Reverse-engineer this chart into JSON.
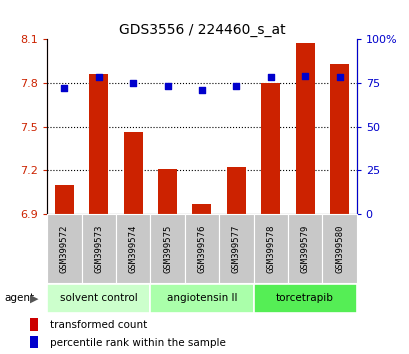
{
  "title": "GDS3556 / 224460_s_at",
  "samples": [
    "GSM399572",
    "GSM399573",
    "GSM399574",
    "GSM399575",
    "GSM399576",
    "GSM399577",
    "GSM399578",
    "GSM399579",
    "GSM399580"
  ],
  "bar_values": [
    7.1,
    7.86,
    7.46,
    7.21,
    6.97,
    7.22,
    7.8,
    8.07,
    7.93
  ],
  "percentile_values": [
    72,
    78,
    75,
    73,
    71,
    73,
    78,
    79,
    78
  ],
  "bar_bottom": 6.9,
  "ylim_left": [
    6.9,
    8.1
  ],
  "ylim_right": [
    0,
    100
  ],
  "yticks_left": [
    6.9,
    7.2,
    7.5,
    7.8,
    8.1
  ],
  "yticks_right": [
    0,
    25,
    50,
    75,
    100
  ],
  "ytick_labels_left": [
    "6.9",
    "7.2",
    "7.5",
    "7.8",
    "8.1"
  ],
  "ytick_labels_right": [
    "0",
    "25",
    "50",
    "75",
    "100%"
  ],
  "bar_color": "#cc2200",
  "dot_color": "#0000cc",
  "groups": [
    {
      "label": "solvent control",
      "start": 0,
      "end": 3,
      "color": "#ccffcc"
    },
    {
      "label": "angiotensin II",
      "start": 3,
      "end": 6,
      "color": "#aaffaa"
    },
    {
      "label": "torcetrapib",
      "start": 6,
      "end": 9,
      "color": "#55ee55"
    }
  ],
  "agent_label": "agent",
  "legend_bar_label": "transformed count",
  "legend_dot_label": "percentile rank within the sample",
  "bar_color_legend": "#cc0000",
  "dot_color_legend": "#0000cc",
  "tick_color_left": "#cc2200",
  "tick_color_right": "#0000cc",
  "sample_bg": "#c8c8c8",
  "title_fontsize": 10
}
